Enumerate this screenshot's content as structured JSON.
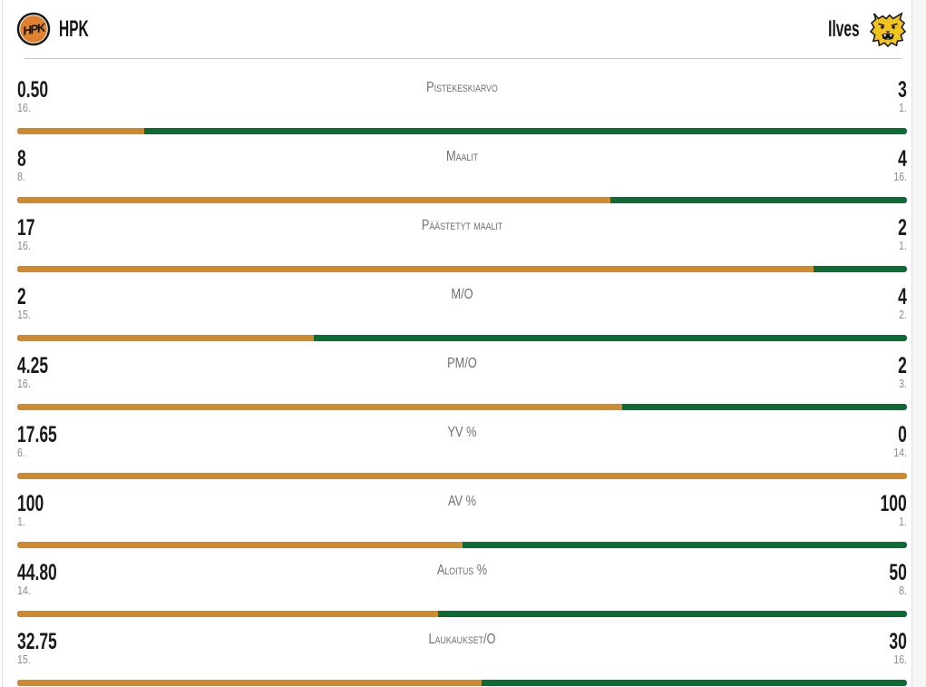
{
  "header": {
    "home_team": {
      "name": "HPK",
      "logo_icon": "hpk-logo"
    },
    "away_team": {
      "name": "Ilves",
      "logo_icon": "ilves-logo"
    }
  },
  "colors": {
    "home_bar": "#d08a2e",
    "away_bar": "#0d6b35",
    "hpk_logo_orange": "#e0812f",
    "ilves_logo_yellow": "#f2c21f"
  },
  "chart_data": {
    "type": "bar",
    "note": "head-to-head team stat comparison, bar = home share of home+away",
    "stats": [
      {
        "label": "Pistekeskiarvo",
        "home_value": "0.50",
        "home_rank": "16.",
        "away_value": "3",
        "away_rank": "1.",
        "home_pct": 14.3
      },
      {
        "label": "Maalit",
        "home_value": "8",
        "home_rank": "8.",
        "away_value": "4",
        "away_rank": "16.",
        "home_pct": 66.7
      },
      {
        "label": "Päästetyt maalit",
        "home_value": "17",
        "home_rank": "16.",
        "away_value": "2",
        "away_rank": "1.",
        "home_pct": 89.5
      },
      {
        "label": "M/O",
        "home_value": "2",
        "home_rank": "15.",
        "away_value": "4",
        "away_rank": "2.",
        "home_pct": 33.3
      },
      {
        "label": "PM/O",
        "home_value": "4.25",
        "home_rank": "16.",
        "away_value": "2",
        "away_rank": "3.",
        "home_pct": 68.0
      },
      {
        "label": "YV %",
        "home_value": "17.65",
        "home_rank": "6.",
        "away_value": "0",
        "away_rank": "14.",
        "home_pct": 100
      },
      {
        "label": "AV %",
        "home_value": "100",
        "home_rank": "1.",
        "away_value": "100",
        "away_rank": "1.",
        "home_pct": 50
      },
      {
        "label": "Aloitus %",
        "home_value": "44.80",
        "home_rank": "14.",
        "away_value": "50",
        "away_rank": "8.",
        "home_pct": 47.3
      },
      {
        "label": "Laukaukset/O",
        "home_value": "32.75",
        "home_rank": "15.",
        "away_value": "30",
        "away_rank": "16.",
        "home_pct": 52.2
      }
    ]
  }
}
